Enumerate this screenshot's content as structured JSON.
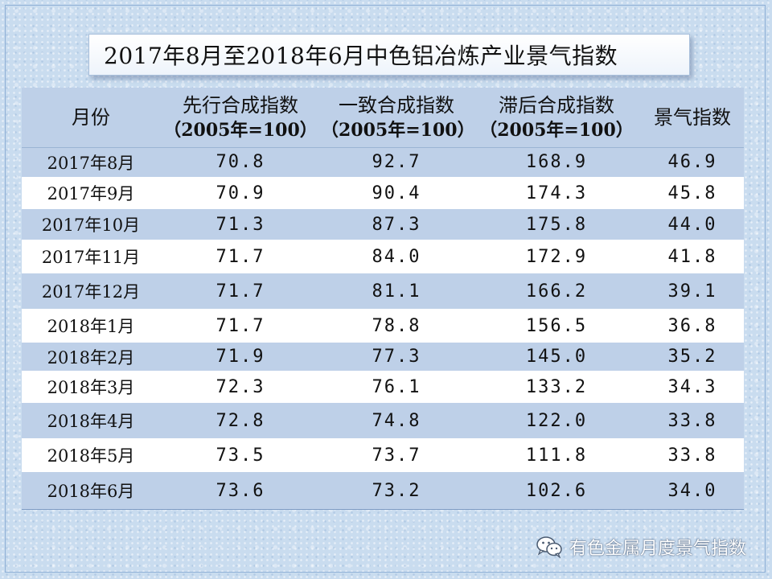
{
  "title": "2017年8月至2018年6月中色铝冶炼产业景气指数",
  "table": {
    "headers": [
      {
        "label": "月份",
        "sub": ""
      },
      {
        "label": "先行合成指数",
        "sub": "（2005年=100）"
      },
      {
        "label": "一致合成指数",
        "sub": "（2005年=100）"
      },
      {
        "label": "滞后合成指数",
        "sub": "（2005年=100）"
      },
      {
        "label": "景气指数",
        "sub": ""
      }
    ],
    "rows": [
      [
        "2017年8月",
        "70.8",
        "92.7",
        "168.9",
        "46.9"
      ],
      [
        "2017年9月",
        "70.9",
        "90.4",
        "174.3",
        "45.8"
      ],
      [
        "2017年10月",
        "71.3",
        "87.3",
        "175.8",
        "44.0"
      ],
      [
        "2017年11月",
        "71.7",
        "84.0",
        "172.9",
        "41.8"
      ],
      [
        "2017年12月",
        "71.7",
        "81.1",
        "166.2",
        "39.1"
      ],
      [
        "2018年1月",
        "71.7",
        "78.8",
        "156.5",
        "36.8"
      ],
      [
        "2018年2月",
        "71.9",
        "77.3",
        "145.0",
        "35.2"
      ],
      [
        "2018年3月",
        "72.3",
        "76.1",
        "133.2",
        "34.3"
      ],
      [
        "2018年4月",
        "72.8",
        "74.8",
        "122.0",
        "33.8"
      ],
      [
        "2018年5月",
        "73.5",
        "73.7",
        "111.8",
        "33.8"
      ],
      [
        "2018年6月",
        "73.6",
        "73.2",
        "102.6",
        "34.0"
      ]
    ]
  },
  "watermark": {
    "icon": "wechat-icon",
    "text": "有色金属月度景气指数"
  },
  "colors": {
    "header_bg": "#bed0e8",
    "band_bg": "#bed0e8",
    "plain_bg": "#ffffff",
    "page_bg": "#c9dcef"
  }
}
